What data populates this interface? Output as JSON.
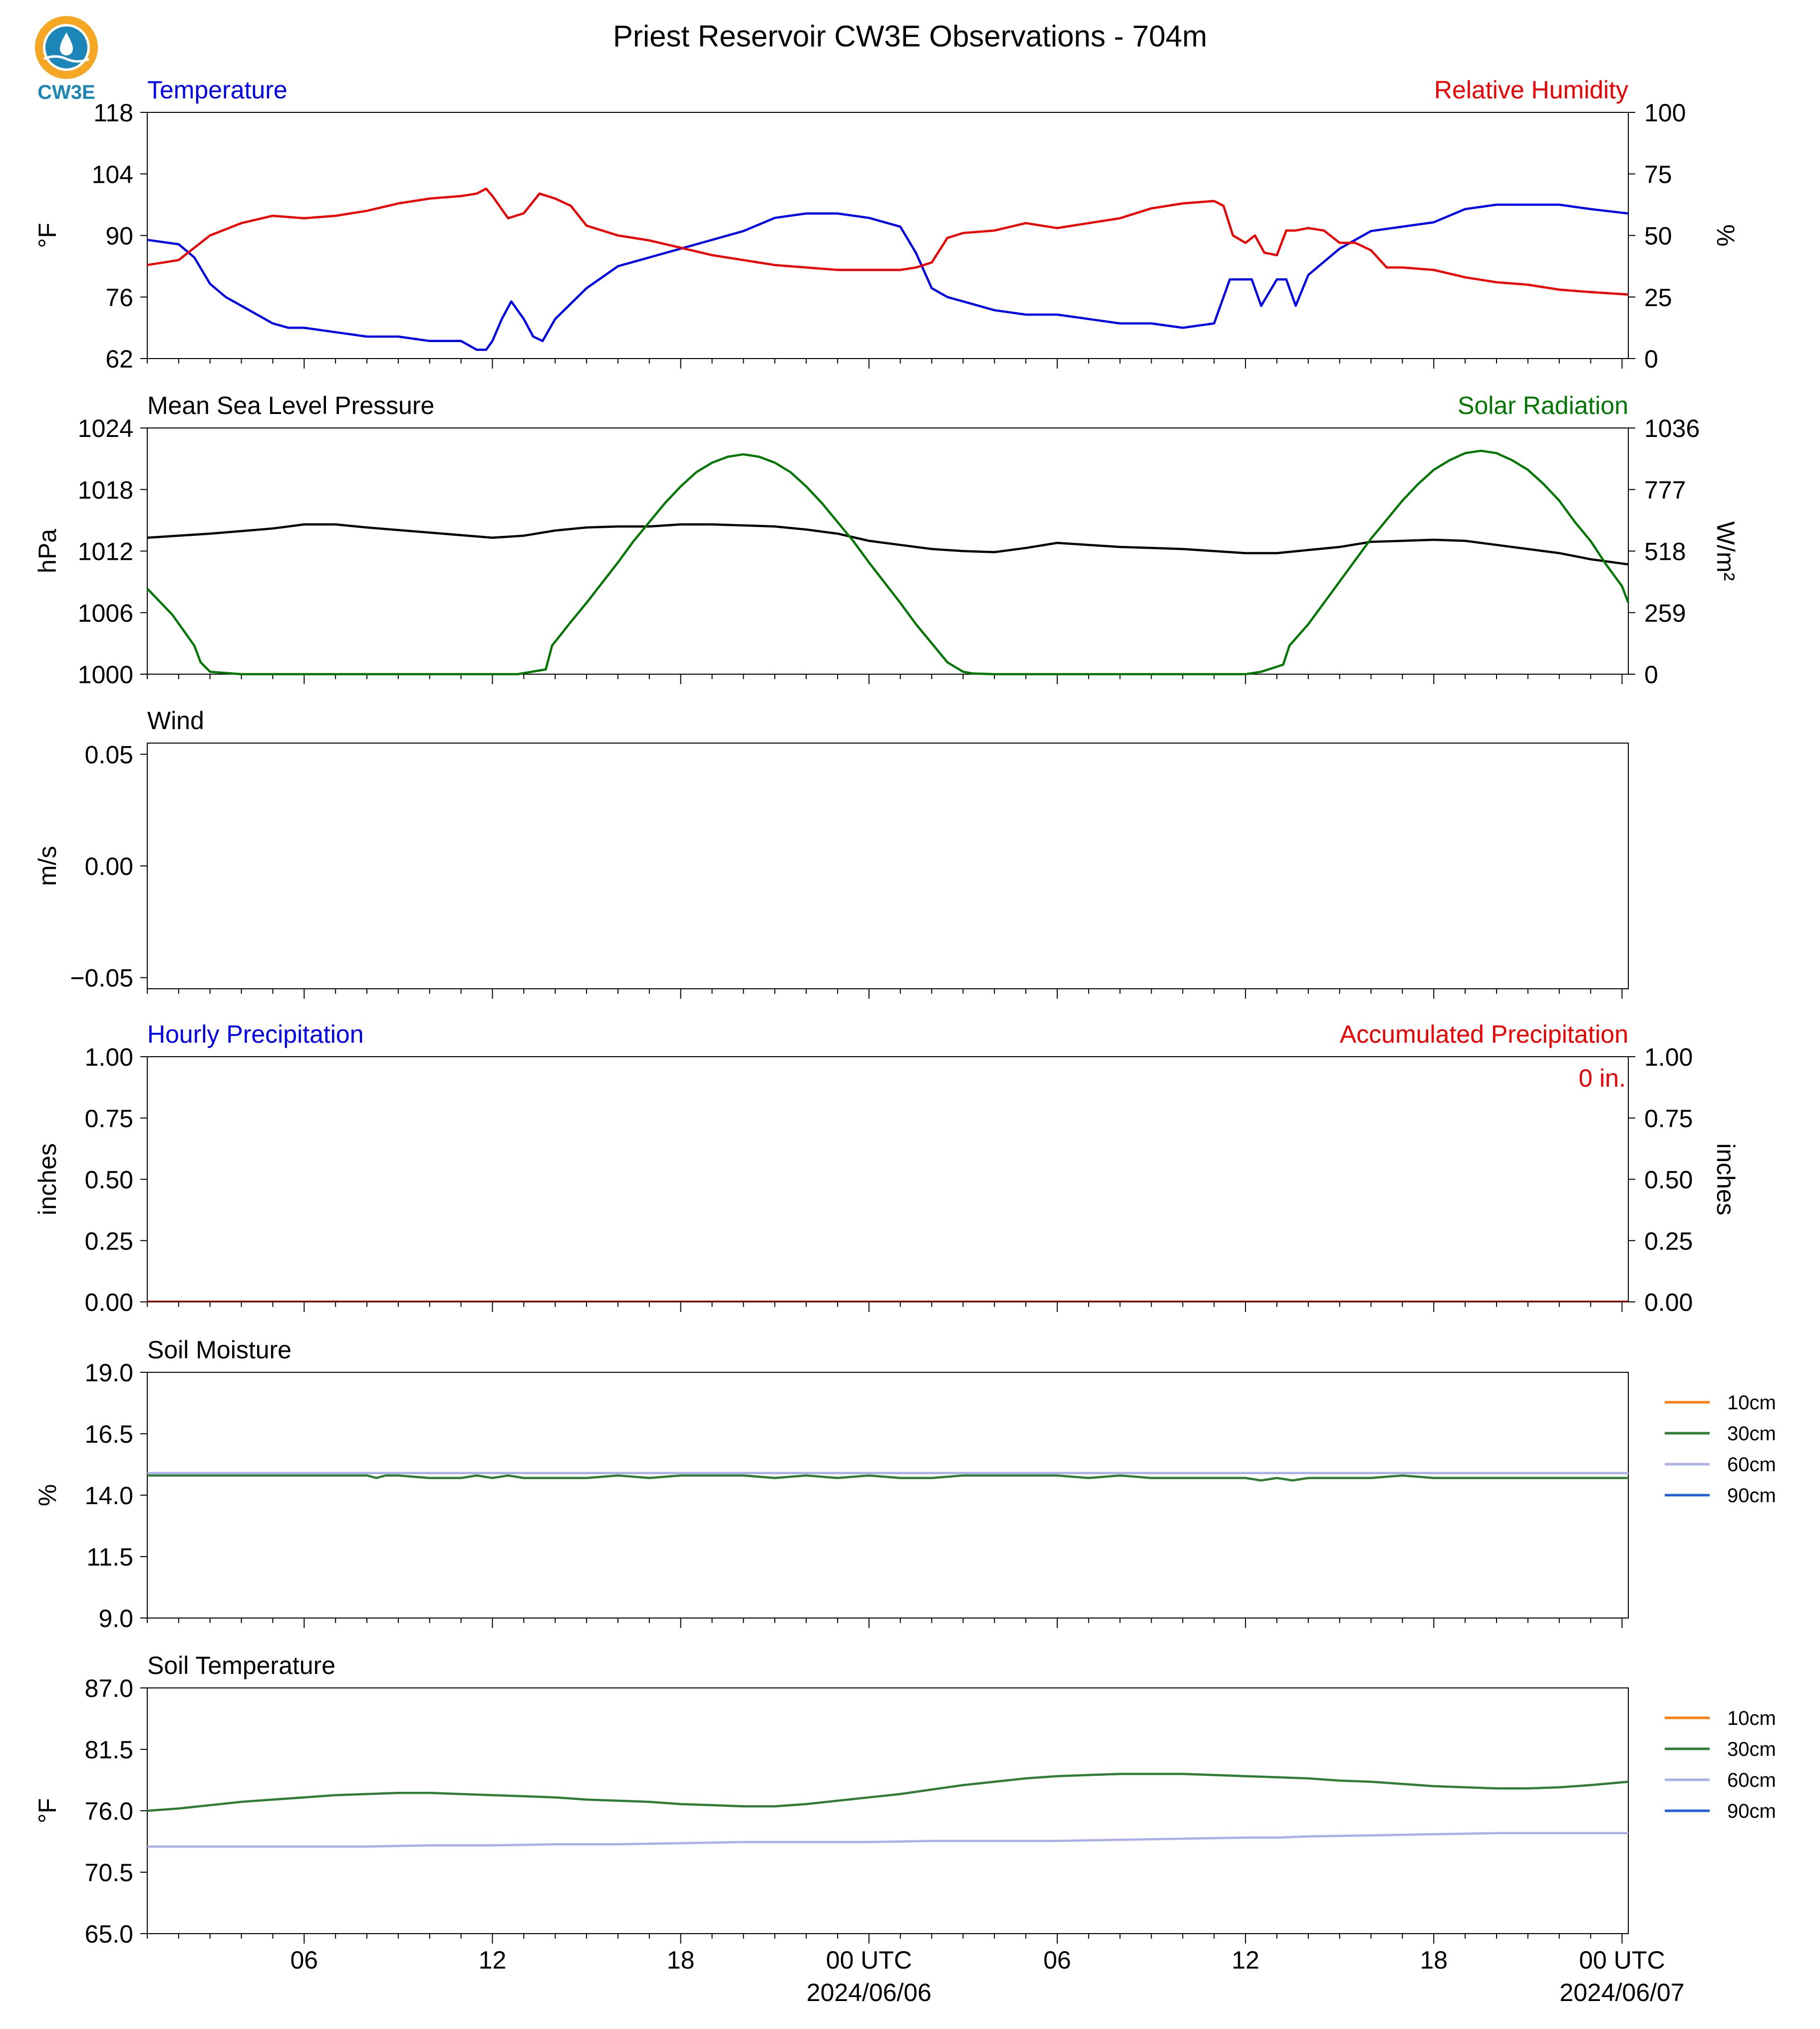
{
  "title": "Priest Reservoir CW3E Observations - 704m",
  "logo_text": "CW3E",
  "colors": {
    "temperature": "#0000ee",
    "humidity": "#ee0000",
    "pressure": "#000000",
    "solar": "#007700",
    "soil_10": "#ff7f0e",
    "soil_30": "#2e7d32",
    "soil_60": "#aab0e8",
    "soil_90": "#1f5fd6",
    "logo_orange": "#f5a623",
    "logo_blue": "#1d86b8"
  },
  "x_axis": {
    "ticks": [
      {
        "label": "06",
        "sublabel": ""
      },
      {
        "label": "12",
        "sublabel": ""
      },
      {
        "label": "18",
        "sublabel": ""
      },
      {
        "label": "00 UTC",
        "sublabel": "2024/06/06"
      },
      {
        "label": "06",
        "sublabel": ""
      },
      {
        "label": "12",
        "sublabel": ""
      },
      {
        "label": "18",
        "sublabel": ""
      },
      {
        "label": "00 UTC",
        "sublabel": "2024/06/07"
      }
    ]
  },
  "chart_data": [
    {
      "type": "line",
      "title_left": "Temperature",
      "title_right": "Relative Humidity",
      "ylabel_left": "°F",
      "ylabel_right": "%",
      "ylim_left": [
        62,
        118
      ],
      "ylim_right": [
        0,
        100
      ],
      "yticks_left": [
        "62",
        "76",
        "90",
        "104",
        "118"
      ],
      "yticks_right": [
        "0",
        "25",
        "50",
        "75",
        "100"
      ],
      "xlim_hours": [
        1,
        48.2
      ],
      "series": [
        {
          "name": "Temperature",
          "axis": "left",
          "color_key": "temperature",
          "x": [
            1,
            2,
            2.5,
            3,
            3.5,
            4,
            4.5,
            5,
            5.5,
            6,
            7,
            8,
            9,
            10,
            11,
            11.5,
            11.8,
            12,
            12.3,
            12.6,
            13,
            13.3,
            13.6,
            14,
            15,
            16,
            17,
            18,
            19,
            20,
            21,
            22,
            23,
            24,
            25,
            25.5,
            26,
            26.5,
            27,
            28,
            29,
            30,
            31,
            32,
            33,
            34,
            35,
            35.2,
            35.5,
            35.8,
            36.2,
            36.5,
            37,
            37.3,
            37.6,
            38,
            39,
            40,
            41,
            42,
            43,
            44,
            45,
            46,
            47,
            48.2
          ],
          "values": [
            89,
            88,
            85,
            79,
            76,
            74,
            72,
            70,
            69,
            69,
            68,
            67,
            67,
            66,
            66,
            64,
            64,
            66,
            71,
            75,
            71,
            67,
            66,
            71,
            78,
            83,
            85,
            87,
            89,
            91,
            94,
            95,
            95,
            94,
            92,
            86,
            78,
            76,
            75,
            73,
            72,
            72,
            71,
            70,
            70,
            69,
            70,
            74,
            80,
            80,
            80,
            74,
            80,
            80,
            74,
            81,
            87,
            91,
            92,
            93,
            96,
            97,
            97,
            97,
            96,
            95
          ]
        },
        {
          "name": "Relative Humidity",
          "axis": "right",
          "color_key": "humidity",
          "x": [
            1,
            2,
            2.5,
            3,
            4,
            5,
            6,
            7,
            8,
            9,
            10,
            11,
            11.5,
            11.8,
            12,
            12.5,
            13,
            13.5,
            14,
            14.5,
            15,
            16,
            17,
            18,
            19,
            20,
            21,
            22,
            23,
            24,
            25,
            25.5,
            26,
            26.5,
            27,
            28,
            29,
            30,
            31,
            32,
            33,
            34,
            35,
            35.3,
            35.6,
            36,
            36.3,
            36.6,
            37,
            37.3,
            37.6,
            38,
            38.5,
            39,
            39.5,
            40,
            40.5,
            41,
            42,
            43,
            44,
            45,
            46,
            47,
            48.2
          ],
          "values": [
            38,
            40,
            45,
            50,
            55,
            58,
            57,
            58,
            60,
            63,
            65,
            66,
            67,
            69,
            66,
            57,
            59,
            67,
            65,
            62,
            54,
            50,
            48,
            45,
            42,
            40,
            38,
            37,
            36,
            36,
            36,
            37,
            39,
            49,
            51,
            52,
            55,
            53,
            55,
            57,
            61,
            63,
            64,
            62,
            50,
            47,
            50,
            43,
            42,
            52,
            52,
            53,
            52,
            47,
            47,
            44,
            37,
            37,
            36,
            33,
            31,
            30,
            28,
            27,
            26
          ]
        },
        {
          "name": "",
          "axis": "left",
          "color_key": "temperature",
          "x": [],
          "values": []
        }
      ]
    },
    {
      "type": "line",
      "title_left": "Mean Sea Level Pressure",
      "title_right": "Solar Radiation",
      "ylabel_left": "hPa",
      "ylabel_right": "W/m²",
      "ylim_left": [
        1000,
        1024
      ],
      "ylim_right": [
        0,
        1036
      ],
      "yticks_left": [
        "1000",
        "1006",
        "1012",
        "1018",
        "1024"
      ],
      "yticks_right": [
        "0",
        "259",
        "518",
        "777",
        "1036"
      ],
      "series": [
        {
          "name": "Mean Sea Level Pressure",
          "axis": "left",
          "color_key": "pressure",
          "x": [
            1,
            3,
            5,
            6,
            7,
            8,
            10,
            12,
            13,
            14,
            15,
            16,
            17,
            18,
            19,
            20,
            21,
            22,
            23,
            24,
            25,
            26,
            27,
            28,
            29,
            30,
            31,
            32,
            33,
            34,
            35,
            36,
            37,
            38,
            39,
            40,
            41,
            42,
            43,
            44,
            45,
            46,
            47,
            48.2
          ],
          "values": [
            1013.3,
            1013.7,
            1014.2,
            1014.6,
            1014.6,
            1014.3,
            1013.8,
            1013.3,
            1013.5,
            1014.0,
            1014.3,
            1014.4,
            1014.4,
            1014.6,
            1014.6,
            1014.5,
            1014.4,
            1014.1,
            1013.7,
            1013.0,
            1012.6,
            1012.2,
            1012.0,
            1011.9,
            1012.3,
            1012.8,
            1012.6,
            1012.4,
            1012.3,
            1012.2,
            1012.0,
            1011.8,
            1011.8,
            1012.1,
            1012.4,
            1012.9,
            1013.0,
            1013.1,
            1013.0,
            1012.6,
            1012.2,
            1011.8,
            1011.2,
            1010.7
          ]
        },
        {
          "name": "Solar Radiation",
          "axis": "right",
          "color_key": "solar",
          "x": [
            1,
            1.8,
            2.5,
            2.7,
            3,
            4,
            5,
            6,
            8,
            10,
            11,
            12,
            12.8,
            13.7,
            13.9,
            14.5,
            15,
            15.5,
            16,
            16.5,
            17,
            17.5,
            18,
            18.5,
            19,
            19.5,
            20,
            20.5,
            21,
            21.5,
            22,
            22.5,
            23,
            23.5,
            24,
            24.5,
            25,
            25.5,
            26,
            26.5,
            27,
            27.3,
            28,
            29,
            30,
            32,
            34,
            35,
            36,
            36.5,
            37.2,
            37.4,
            38,
            38.5,
            39,
            39.5,
            40,
            40.5,
            41,
            41.5,
            42,
            42.5,
            43,
            43.5,
            44,
            44.5,
            45,
            45.5,
            46,
            46.5,
            47,
            47.5,
            48,
            48.2
          ],
          "values": [
            360,
            250,
            120,
            50,
            10,
            0,
            0,
            0,
            0,
            0,
            0,
            0,
            0,
            20,
            120,
            220,
            300,
            385,
            470,
            560,
            640,
            720,
            790,
            850,
            890,
            915,
            925,
            915,
            890,
            850,
            790,
            720,
            640,
            560,
            470,
            385,
            300,
            210,
            130,
            50,
            10,
            3,
            0,
            0,
            0,
            0,
            0,
            0,
            0,
            10,
            40,
            120,
            210,
            300,
            390,
            480,
            570,
            650,
            730,
            800,
            860,
            900,
            930,
            940,
            930,
            900,
            860,
            800,
            730,
            640,
            560,
            460,
            370,
            300
          ]
        }
      ]
    },
    {
      "type": "line",
      "title_left": "Wind",
      "ylabel_left": "m/s",
      "ylim_left": [
        -0.055,
        0.055
      ],
      "yticks_left": [
        "−0.05",
        "0.00",
        "0.05"
      ],
      "series": []
    },
    {
      "type": "bar",
      "title_left": "Hourly Precipitation",
      "title_right": "Accumulated Precipitation",
      "ylabel_left": "inches",
      "ylabel_right": "inches",
      "ylim_left": [
        0,
        1
      ],
      "ylim_right": [
        0,
        1
      ],
      "yticks_left": [
        "0.00",
        "0.25",
        "0.50",
        "0.75",
        "1.00"
      ],
      "yticks_right": [
        "0.00",
        "0.25",
        "0.50",
        "0.75",
        "1.00"
      ],
      "annotation": "0 in.",
      "series": [
        {
          "name": "Hourly Precipitation",
          "values": [
            0
          ]
        },
        {
          "name": "Accumulated Precipitation",
          "values": [
            0
          ]
        }
      ]
    },
    {
      "type": "line",
      "title_left": "Soil Moisture",
      "ylabel_left": "%",
      "ylim_left": [
        9,
        19
      ],
      "yticks_left": [
        "9.0",
        "11.5",
        "14.0",
        "16.5",
        "19.0"
      ],
      "legend": [
        "10cm",
        "30cm",
        "60cm",
        "90cm"
      ],
      "series": [
        {
          "name": "30cm",
          "color_key": "soil_30",
          "x": [
            1,
            8,
            8.3,
            8.6,
            9,
            10,
            11,
            11.5,
            12,
            12.5,
            13,
            14,
            15,
            16,
            17,
            18,
            19,
            20,
            21,
            22,
            23,
            24,
            25,
            26,
            27,
            28,
            29,
            30,
            31,
            32,
            33,
            34,
            35,
            36,
            36.5,
            37,
            37.5,
            38,
            39,
            40,
            41,
            42,
            43,
            44,
            45,
            46,
            47,
            48.2
          ],
          "values": [
            14.8,
            14.8,
            14.7,
            14.8,
            14.8,
            14.7,
            14.7,
            14.8,
            14.7,
            14.8,
            14.7,
            14.7,
            14.7,
            14.8,
            14.7,
            14.8,
            14.8,
            14.8,
            14.7,
            14.8,
            14.7,
            14.8,
            14.7,
            14.7,
            14.8,
            14.8,
            14.8,
            14.8,
            14.7,
            14.8,
            14.7,
            14.7,
            14.7,
            14.7,
            14.6,
            14.7,
            14.6,
            14.7,
            14.7,
            14.7,
            14.8,
            14.7,
            14.7,
            14.7,
            14.7,
            14.7,
            14.7,
            14.7
          ]
        },
        {
          "name": "60cm",
          "color_key": "soil_60",
          "x": [
            1,
            48.2
          ],
          "values": [
            14.9,
            14.9
          ]
        }
      ]
    },
    {
      "type": "line",
      "title_left": "Soil Temperature",
      "ylabel_left": "°F",
      "ylim_left": [
        65,
        87
      ],
      "yticks_left": [
        "65.0",
        "70.5",
        "76.0",
        "81.5",
        "87.0"
      ],
      "legend": [
        "10cm",
        "30cm",
        "60cm",
        "90cm"
      ],
      "series": [
        {
          "name": "30cm",
          "color_key": "soil_30",
          "x": [
            1,
            2,
            3,
            4,
            5,
            6,
            7,
            8,
            9,
            10,
            11,
            12,
            13,
            14,
            15,
            16,
            17,
            18,
            19,
            20,
            21,
            22,
            23,
            24,
            25,
            26,
            27,
            28,
            29,
            30,
            31,
            32,
            33,
            34,
            35,
            36,
            37,
            38,
            39,
            40,
            41,
            42,
            43,
            44,
            45,
            46,
            47,
            48.2
          ],
          "values": [
            76.0,
            76.2,
            76.5,
            76.8,
            77.0,
            77.2,
            77.4,
            77.5,
            77.6,
            77.6,
            77.5,
            77.4,
            77.3,
            77.2,
            77.0,
            76.9,
            76.8,
            76.6,
            76.5,
            76.4,
            76.4,
            76.6,
            76.9,
            77.2,
            77.5,
            77.9,
            78.3,
            78.6,
            78.9,
            79.1,
            79.2,
            79.3,
            79.3,
            79.3,
            79.2,
            79.1,
            79.0,
            78.9,
            78.7,
            78.6,
            78.4,
            78.2,
            78.1,
            78.0,
            78.0,
            78.1,
            78.3,
            78.6
          ]
        },
        {
          "name": "60cm",
          "color_key": "soil_60",
          "x": [
            1,
            4,
            6,
            8,
            10,
            12,
            14,
            16,
            18,
            20,
            22,
            24,
            26,
            28,
            30,
            32,
            34,
            36,
            37,
            38,
            40,
            42,
            44,
            46,
            48.2
          ],
          "values": [
            72.8,
            72.8,
            72.8,
            72.8,
            72.9,
            72.9,
            73.0,
            73.0,
            73.1,
            73.2,
            73.2,
            73.2,
            73.3,
            73.3,
            73.3,
            73.4,
            73.5,
            73.6,
            73.6,
            73.7,
            73.8,
            73.9,
            74.0,
            74.0,
            74.0
          ]
        }
      ]
    }
  ]
}
